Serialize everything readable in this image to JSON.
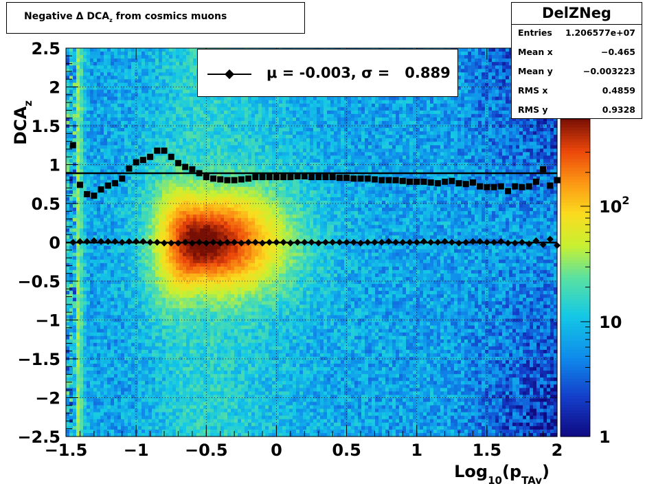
{
  "title": "Negative Δ DCA_z from cosmics muons",
  "stats": {
    "name": "DelZNeg",
    "rows": [
      {
        "label": "Entries",
        "value": "1.206577e+07"
      },
      {
        "label": "Mean x",
        "value": "−0.465"
      },
      {
        "label": "Mean y",
        "value": "−0.003223"
      },
      {
        "label": "RMS x",
        "value": "0.4859"
      },
      {
        "label": "RMS y",
        "value": "0.9328"
      }
    ]
  },
  "legend_text": "μ = -0.003, σ =   0.889",
  "chart_data": {
    "type": "heatmap",
    "xlabel": "Log_10(p_TAv)",
    "ylabel": "DCA_z",
    "xlim": [
      -1.5,
      2
    ],
    "ylim": [
      -2.5,
      2.5
    ],
    "xticks": [
      "−1.5",
      "−1",
      "−0.5",
      "0",
      "0.5",
      "1",
      "1.5",
      "2"
    ],
    "yticks": [
      "−2.5",
      "−2",
      "−1.5",
      "−1",
      "−0.5",
      "0",
      "0.5",
      "1",
      "1.5",
      "2",
      "2.5"
    ],
    "colorbar": {
      "log": true,
      "ticks": [
        "1",
        "10",
        "10^2"
      ]
    },
    "grid": true,
    "sigma_line": 0.889,
    "mean_line": -0.003,
    "series": [
      {
        "name": "sigma points",
        "x": [
          -1.45,
          -1.4,
          -1.35,
          -1.3,
          -1.25,
          -1.2,
          -1.15,
          -1.1,
          -1.05,
          -1.0,
          -0.95,
          -0.9,
          -0.85,
          -0.8,
          -0.75,
          -0.7,
          -0.65,
          -0.6,
          -0.55,
          -0.5,
          -0.45,
          -0.4,
          -0.35,
          -0.3,
          -0.25,
          -0.2,
          -0.15,
          -0.1,
          -0.05,
          0.0,
          0.05,
          0.1,
          0.15,
          0.2,
          0.25,
          0.3,
          0.35,
          0.4,
          0.45,
          0.5,
          0.55,
          0.6,
          0.65,
          0.7,
          0.75,
          0.8,
          0.85,
          0.9,
          0.95,
          1.0,
          1.05,
          1.1,
          1.15,
          1.2,
          1.25,
          1.3,
          1.35,
          1.4,
          1.45,
          1.5,
          1.55,
          1.6,
          1.65,
          1.7,
          1.75,
          1.8,
          1.85,
          1.9,
          1.95,
          2.0
        ],
        "y": [
          1.25,
          0.74,
          0.62,
          0.6,
          0.68,
          0.73,
          0.76,
          0.82,
          0.95,
          1.03,
          1.06,
          1.1,
          1.18,
          1.18,
          1.1,
          1.02,
          0.97,
          0.94,
          0.89,
          0.84,
          0.82,
          0.81,
          0.8,
          0.8,
          0.81,
          0.82,
          0.84,
          0.84,
          0.84,
          0.84,
          0.84,
          0.84,
          0.85,
          0.85,
          0.84,
          0.84,
          0.84,
          0.84,
          0.83,
          0.83,
          0.82,
          0.82,
          0.82,
          0.81,
          0.8,
          0.8,
          0.8,
          0.79,
          0.78,
          0.78,
          0.78,
          0.77,
          0.76,
          0.78,
          0.79,
          0.76,
          0.75,
          0.77,
          0.72,
          0.71,
          0.71,
          0.72,
          0.66,
          0.72,
          0.71,
          0.72,
          0.78,
          0.94,
          0.73,
          0.8
        ]
      },
      {
        "name": "mean points",
        "x": [
          -1.45,
          -1.4,
          -1.35,
          -1.3,
          -1.25,
          -1.2,
          -1.15,
          -1.1,
          -1.05,
          -1.0,
          -0.95,
          -0.9,
          -0.85,
          -0.8,
          -0.75,
          -0.7,
          -0.65,
          -0.6,
          -0.55,
          -0.5,
          -0.45,
          -0.4,
          -0.35,
          -0.3,
          -0.25,
          -0.2,
          -0.15,
          -0.1,
          -0.05,
          0.0,
          0.05,
          0.1,
          0.15,
          0.2,
          0.25,
          0.3,
          0.35,
          0.4,
          0.45,
          0.5,
          0.55,
          0.6,
          0.65,
          0.7,
          0.75,
          0.8,
          0.85,
          0.9,
          0.95,
          1.0,
          1.05,
          1.1,
          1.15,
          1.2,
          1.25,
          1.3,
          1.35,
          1.4,
          1.45,
          1.5,
          1.55,
          1.6,
          1.65,
          1.7,
          1.75,
          1.8,
          1.85,
          1.9,
          1.95,
          2.0
        ],
        "y": [
          0.0,
          0.01,
          0.01,
          0.02,
          0.01,
          0.01,
          0.01,
          0.0,
          0.01,
          0.01,
          0.01,
          0.0,
          0.0,
          -0.01,
          -0.01,
          -0.01,
          0.0,
          -0.01,
          0.0,
          -0.01,
          0.0,
          -0.01,
          0.0,
          0.0,
          -0.01,
          0.0,
          0.0,
          -0.01,
          0.0,
          0.0,
          0.0,
          -0.01,
          0.0,
          0.0,
          0.0,
          -0.01,
          0.0,
          0.0,
          0.0,
          0.0,
          0.0,
          -0.01,
          0.0,
          0.0,
          0.0,
          0.01,
          0.0,
          0.0,
          0.0,
          0.0,
          0.01,
          0.0,
          0.0,
          0.01,
          0.0,
          -0.01,
          0.0,
          0.01,
          0.01,
          0.0,
          0.0,
          0.01,
          -0.01,
          -0.01,
          0.0,
          -0.02,
          0.02,
          -0.03,
          0.04,
          -0.04
        ]
      }
    ]
  }
}
